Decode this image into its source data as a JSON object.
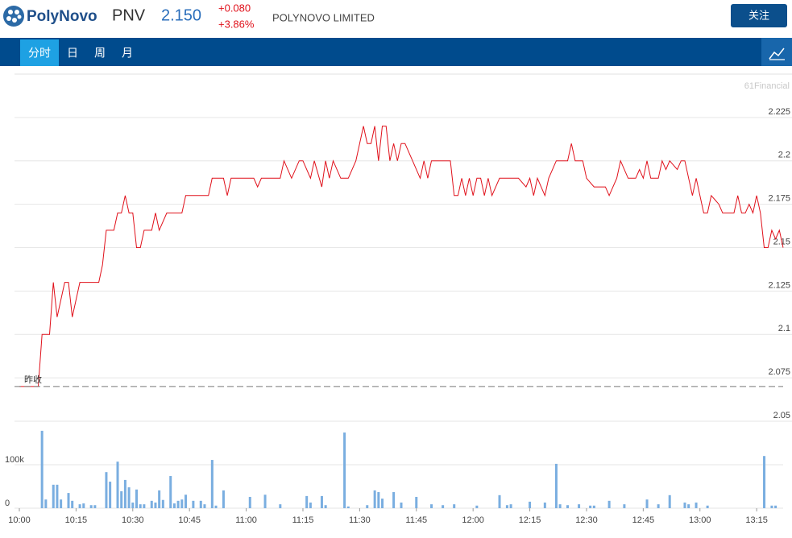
{
  "header": {
    "brand": "PolyNovo",
    "symbol": "PNV",
    "price": "2.150",
    "change": "+0.080",
    "change_pct": "+3.86%",
    "company": "POLYNOVO LIMITED",
    "follow_button": "关注"
  },
  "tabs": [
    "分时",
    "日",
    "周",
    "月"
  ],
  "watermark": "61Financial",
  "chart_data": [
    {
      "type": "line",
      "x": [
        "10:00",
        "10:05",
        "10:06",
        "10:08",
        "10:09",
        "10:10",
        "10:12",
        "10:13",
        "10:14",
        "10:16",
        "10:21",
        "10:22",
        "10:23",
        "10:25",
        "10:26",
        "10:27",
        "10:28",
        "10:29",
        "10:30",
        "10:31",
        "10:32",
        "10:33",
        "10:35",
        "10:36",
        "10:37",
        "10:39",
        "10:43",
        "10:44",
        "10:50",
        "10:51",
        "10:54",
        "10:55",
        "10:56",
        "11:02",
        "11:03",
        "11:04",
        "11:09",
        "11:10",
        "11:12",
        "11:14",
        "11:15",
        "11:17",
        "11:18",
        "11:20",
        "11:21",
        "11:22",
        "11:23",
        "11:25",
        "11:27",
        "11:29",
        "11:31",
        "11:32",
        "11:33",
        "11:34",
        "11:35",
        "11:36",
        "11:37",
        "11:38",
        "11:39",
        "11:40",
        "11:41",
        "11:42",
        "11:44",
        "11:46",
        "11:47",
        "11:48",
        "11:49",
        "11:54",
        "11:55",
        "11:56",
        "11:57",
        "11:58",
        "11:59",
        "12:00",
        "12:01",
        "12:02",
        "12:03",
        "12:04",
        "12:05",
        "12:07",
        "12:12",
        "12:14",
        "12:15",
        "12:16",
        "12:17",
        "12:19",
        "12:20",
        "12:22",
        "12:25",
        "12:26",
        "12:27",
        "12:29",
        "12:30",
        "12:32",
        "12:35",
        "12:36",
        "12:38",
        "12:39",
        "12:41",
        "12:43",
        "12:44",
        "12:45",
        "12:46",
        "12:47",
        "12:49",
        "12:50",
        "12:51",
        "12:52",
        "12:54",
        "12:55",
        "12:56",
        "12:58",
        "12:59",
        "13:01",
        "13:02",
        "13:03",
        "13:05",
        "13:06",
        "13:09",
        "13:10",
        "13:11",
        "13:12",
        "13:13",
        "13:14",
        "13:15",
        "13:16",
        "13:17",
        "13:18",
        "13:19",
        "13:20",
        "13:21",
        "13:22"
      ],
      "series": [
        {
          "color": "#e0101a",
          "values": [
            2.07,
            2.07,
            2.1,
            2.1,
            2.13,
            2.11,
            2.13,
            2.13,
            2.11,
            2.13,
            2.13,
            2.14,
            2.16,
            2.16,
            2.17,
            2.17,
            2.18,
            2.17,
            2.17,
            2.15,
            2.15,
            2.16,
            2.16,
            2.17,
            2.16,
            2.17,
            2.17,
            2.18,
            2.18,
            2.19,
            2.19,
            2.18,
            2.19,
            2.19,
            2.185,
            2.19,
            2.19,
            2.2,
            2.19,
            2.2,
            2.2,
            2.19,
            2.2,
            2.185,
            2.2,
            2.19,
            2.2,
            2.19,
            2.19,
            2.2,
            2.22,
            2.21,
            2.21,
            2.22,
            2.2,
            2.22,
            2.22,
            2.2,
            2.21,
            2.2,
            2.21,
            2.21,
            2.2,
            2.19,
            2.2,
            2.19,
            2.2,
            2.2,
            2.18,
            2.18,
            2.19,
            2.18,
            2.19,
            2.18,
            2.19,
            2.19,
            2.18,
            2.19,
            2.18,
            2.19,
            2.19,
            2.185,
            2.19,
            2.18,
            2.19,
            2.18,
            2.19,
            2.2,
            2.2,
            2.21,
            2.2,
            2.2,
            2.19,
            2.185,
            2.185,
            2.18,
            2.19,
            2.2,
            2.19,
            2.19,
            2.195,
            2.19,
            2.2,
            2.19,
            2.19,
            2.2,
            2.195,
            2.2,
            2.195,
            2.2,
            2.2,
            2.18,
            2.19,
            2.17,
            2.17,
            2.18,
            2.175,
            2.17,
            2.17,
            2.18,
            2.17,
            2.17,
            2.175,
            2.17,
            2.18,
            2.17,
            2.15,
            2.15,
            2.16,
            2.155,
            2.16,
            2.15
          ]
        }
      ],
      "reference": {
        "label": "昨收",
        "value": 2.07
      },
      "xlim": [
        "10:00",
        "13:22"
      ],
      "ylim": [
        2.05,
        2.25
      ],
      "yticks": [
        2.05,
        2.075,
        2.1,
        2.125,
        2.15,
        2.175,
        2.2,
        2.225
      ],
      "grid": true
    },
    {
      "type": "bar",
      "x": [
        "10:06",
        "10:07",
        "10:09",
        "10:10",
        "10:11",
        "10:13",
        "10:14",
        "10:16",
        "10:17",
        "10:19",
        "10:20",
        "10:23",
        "10:24",
        "10:26",
        "10:27",
        "10:28",
        "10:29",
        "10:30",
        "10:31",
        "10:32",
        "10:33",
        "10:35",
        "10:36",
        "10:37",
        "10:38",
        "10:40",
        "10:41",
        "10:42",
        "10:43",
        "10:44",
        "10:46",
        "10:48",
        "10:49",
        "10:51",
        "10:52",
        "10:54",
        "11:01",
        "11:05",
        "11:09",
        "11:16",
        "11:17",
        "11:20",
        "11:21",
        "11:26",
        "11:27",
        "11:32",
        "11:34",
        "11:35",
        "11:36",
        "11:39",
        "11:41",
        "11:45",
        "11:49",
        "11:52",
        "11:55",
        "12:01",
        "12:07",
        "12:09",
        "12:10",
        "12:15",
        "12:19",
        "12:22",
        "12:23",
        "12:25",
        "12:28",
        "12:31",
        "12:32",
        "12:36",
        "12:40",
        "12:46",
        "12:49",
        "12:52",
        "12:56",
        "12:57",
        "12:59",
        "13:02",
        "13:17",
        "13:19",
        "13:20"
      ],
      "color": "#7aaee0",
      "values": [
        178000,
        20000,
        54000,
        54000,
        20000,
        35000,
        17000,
        9000,
        11000,
        7000,
        7000,
        83000,
        61000,
        107000,
        39000,
        65000,
        48000,
        13000,
        43000,
        9000,
        9000,
        17000,
        13000,
        41000,
        19000,
        74000,
        11000,
        17000,
        20000,
        31000,
        17000,
        17000,
        9000,
        111000,
        6000,
        41000,
        26000,
        31000,
        9000,
        28000,
        13000,
        28000,
        7000,
        174000,
        4000,
        7000,
        41000,
        37000,
        22000,
        37000,
        13000,
        26000,
        9000,
        7000,
        9000,
        6000,
        30000,
        7000,
        9000,
        15000,
        13000,
        102000,
        9000,
        7000,
        9000,
        6000,
        6000,
        17000,
        9000,
        20000,
        9000,
        30000,
        13000,
        9000,
        13000,
        6000,
        120000,
        6000,
        6000
      ],
      "xlim": [
        "10:00",
        "13:22"
      ],
      "xticks": [
        "10:00",
        "10:15",
        "10:30",
        "10:45",
        "11:00",
        "11:15",
        "11:30",
        "11:45",
        "12:00",
        "12:15",
        "12:30",
        "12:45",
        "13:00",
        "13:15"
      ],
      "ylim": [
        0,
        200000
      ],
      "yticks": [
        {
          "value": 0,
          "label": "0"
        },
        {
          "value": 100000,
          "label": "100k"
        }
      ]
    }
  ]
}
